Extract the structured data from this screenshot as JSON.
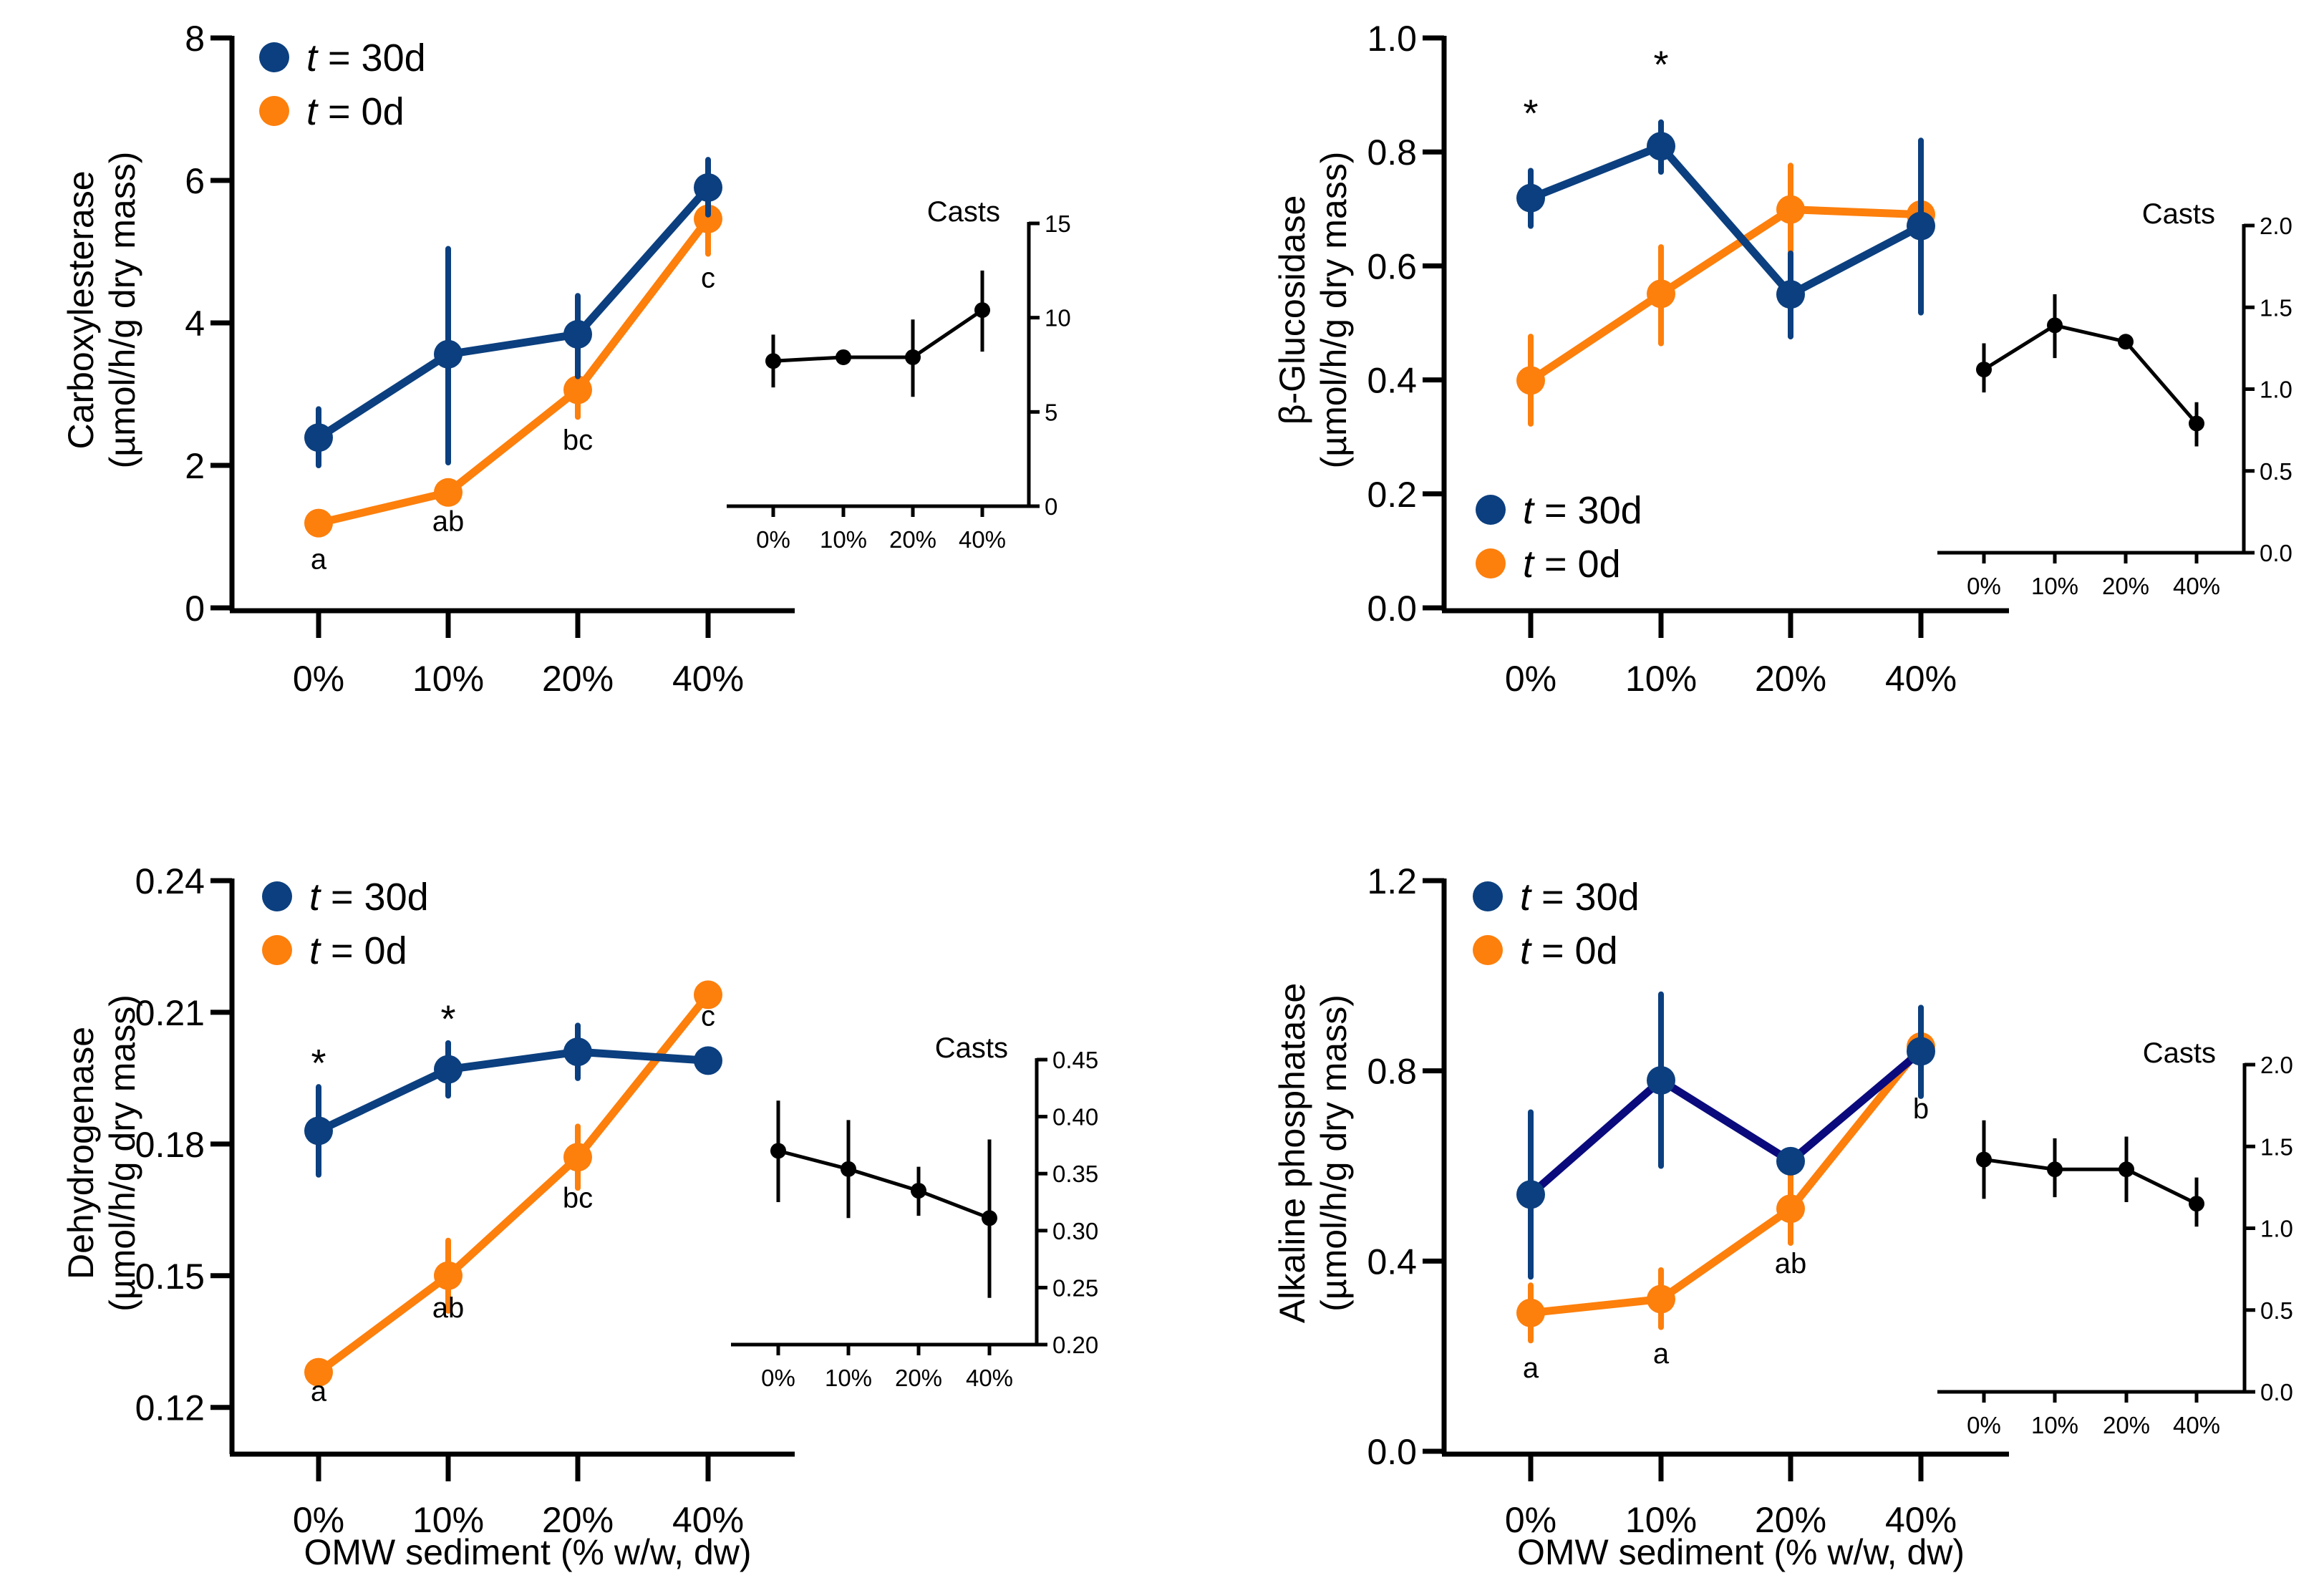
{
  "figure": {
    "x_axis_title": "OMW sediment (% w/w, dw)",
    "legend": [
      {
        "prefix": "t",
        "label": " = 30d",
        "color": "#0b3f7f"
      },
      {
        "prefix": "t",
        "label": " = 0d",
        "color": "#fd7f0c"
      }
    ],
    "inset_title": "Casts",
    "colors": {
      "t30": "#0b3f7f",
      "t0": "#fd7f0c",
      "t30_alt_line": "#0a0a7d",
      "casts": "#000000"
    }
  },
  "chart_data": [
    {
      "type": "line",
      "panel": "top-left",
      "title": "",
      "ylabel_line1": "Carboxylesterase",
      "ylabel_line2": "(µmol/h/g dry mass)",
      "xlabel": "",
      "categories": [
        "0%",
        "10%",
        "20%",
        "40%"
      ],
      "ylim": [
        0,
        8
      ],
      "yticks": [
        0,
        2,
        4,
        6,
        8
      ],
      "ytick_labels": [
        "0",
        "2",
        "4",
        "6",
        "8"
      ],
      "legend_placement": "top-left",
      "series": [
        {
          "name": "t = 30d",
          "values": [
            2.39,
            3.56,
            3.84,
            5.9
          ],
          "err_low": [
            2.0,
            2.04,
            3.25,
            5.52
          ],
          "err_high": [
            2.79,
            5.04,
            4.38,
            6.29
          ]
        },
        {
          "name": "t = 0d",
          "values": [
            1.19,
            1.62,
            3.06,
            5.46
          ],
          "err_low": [
            1.19,
            1.62,
            2.68,
            4.97
          ],
          "err_high": [
            1.19,
            1.62,
            3.3,
            5.9
          ]
        }
      ],
      "letters": [
        {
          "category": "0%",
          "text": "a",
          "y": 0.55
        },
        {
          "category": "10%",
          "text": "ab",
          "y": 1.08
        },
        {
          "category": "20%",
          "text": "bc",
          "y": 2.22
        },
        {
          "category": "40%",
          "text": "c",
          "y": 4.5
        }
      ],
      "stars": [],
      "inset": {
        "title": "Casts",
        "categories": [
          "0%",
          "10%",
          "20%",
          "40%"
        ],
        "ylim": [
          0,
          15
        ],
        "yticks": [
          0,
          5,
          10,
          15
        ],
        "ytick_labels": [
          "0",
          "5",
          "10",
          "15"
        ],
        "values": [
          7.7,
          7.9,
          7.9,
          10.4
        ],
        "err_low": [
          6.3,
          7.9,
          5.8,
          8.2
        ],
        "err_high": [
          9.1,
          7.9,
          9.9,
          12.5
        ]
      }
    },
    {
      "type": "line",
      "panel": "top-right",
      "title": "",
      "ylabel_line1": "β-Glucosidase",
      "ylabel_line2": "(µmol/h/g dry mass)",
      "xlabel": "",
      "categories": [
        "0%",
        "10%",
        "20%",
        "40%"
      ],
      "ylim": [
        0,
        1.0
      ],
      "yticks": [
        0,
        0.2,
        0.4,
        0.6,
        0.8,
        1.0
      ],
      "ytick_labels": [
        "0.0",
        "0.2",
        "0.4",
        "0.6",
        "0.8",
        "1.0"
      ],
      "legend_placement": "bottom-left",
      "series": [
        {
          "name": "t = 30d",
          "values": [
            0.719,
            0.81,
            0.55,
            0.67
          ],
          "err_low": [
            0.67,
            0.765,
            0.476,
            0.518
          ],
          "err_high": [
            0.767,
            0.852,
            0.622,
            0.82
          ]
        },
        {
          "name": "t = 0d",
          "values": [
            0.399,
            0.551,
            0.699,
            0.69
          ],
          "err_low": [
            0.323,
            0.464,
            0.626,
            0.69
          ],
          "err_high": [
            0.476,
            0.633,
            0.776,
            0.69
          ]
        }
      ],
      "letters": [],
      "stars": [
        {
          "category": "0%",
          "text": "*",
          "y": 0.845
        },
        {
          "category": "10%",
          "text": "*",
          "y": 0.93
        }
      ],
      "inset": {
        "title": "Casts",
        "categories": [
          "0%",
          "10%",
          "20%",
          "40%"
        ],
        "ylim": [
          0,
          2.0
        ],
        "yticks": [
          0,
          0.5,
          1.0,
          1.5,
          2.0
        ],
        "ytick_labels": [
          "0.0",
          "0.5",
          "1.0",
          "1.5",
          "2.0"
        ],
        "values": [
          1.12,
          1.39,
          1.29,
          0.79
        ],
        "err_low": [
          0.98,
          1.19,
          1.29,
          0.65
        ],
        "err_high": [
          1.28,
          1.58,
          1.29,
          0.92
        ]
      }
    },
    {
      "type": "line",
      "panel": "bottom-left",
      "title": "",
      "ylabel_line1": "Dehydrogenase",
      "ylabel_line2": "(µmol/h/g dry mass)",
      "xlabel": "OMW sediment (% w/w, dw)",
      "categories": [
        "0%",
        "10%",
        "20%",
        "40%"
      ],
      "ylim": [
        0.11,
        0.24
      ],
      "yticks": [
        0.12,
        0.15,
        0.18,
        0.21,
        0.24
      ],
      "ytick_labels": [
        "0.12",
        "0.15",
        "0.18",
        "0.21",
        "0.24"
      ],
      "legend_placement": "top-left",
      "series": [
        {
          "name": "t = 30d",
          "values": [
            0.183,
            0.197,
            0.201,
            0.199
          ],
          "err_low": [
            0.173,
            0.191,
            0.195,
            0.199
          ],
          "err_high": [
            0.193,
            0.203,
            0.207,
            0.199
          ]
        },
        {
          "name": "t = 0d",
          "values": [
            0.128,
            0.15,
            0.177,
            0.214
          ],
          "err_low": [
            0.128,
            0.142,
            0.17,
            0.214
          ],
          "err_high": [
            0.128,
            0.158,
            0.184,
            0.214
          ]
        }
      ],
      "letters": [
        {
          "category": "0%",
          "text": "a",
          "y": 0.1215
        },
        {
          "category": "10%",
          "text": "ab",
          "y": 0.1405
        },
        {
          "category": "20%",
          "text": "bc",
          "y": 0.1655
        },
        {
          "category": "40%",
          "text": "c",
          "y": 0.207
        }
      ],
      "stars": [
        {
          "category": "0%",
          "text": "*",
          "y": 0.1955
        },
        {
          "category": "10%",
          "text": "*",
          "y": 0.2055
        }
      ],
      "inset": {
        "title": "Casts",
        "categories": [
          "0%",
          "10%",
          "20%",
          "40%"
        ],
        "ylim": [
          0.2,
          0.45
        ],
        "yticks": [
          0.2,
          0.25,
          0.3,
          0.35,
          0.4,
          0.45
        ],
        "ytick_labels": [
          "0.20",
          "0.25",
          "0.30",
          "0.35",
          "0.40",
          "0.45"
        ],
        "values": [
          0.37,
          0.354,
          0.335,
          0.311
        ],
        "err_low": [
          0.325,
          0.311,
          0.313,
          0.241
        ],
        "err_high": [
          0.414,
          0.397,
          0.356,
          0.38
        ]
      }
    },
    {
      "type": "line",
      "panel": "bottom-right",
      "title": "",
      "ylabel_line1": "Alkaline phosphatase",
      "ylabel_line2": "(µmol/h/g dry mass)",
      "xlabel": "OMW sediment (% w/w, dw)",
      "categories": [
        "0%",
        "10%",
        "20%",
        "40%"
      ],
      "ylim": [
        0,
        1.2
      ],
      "yticks": [
        0,
        0.4,
        0.8,
        1.2
      ],
      "ytick_labels": [
        "0.0",
        "0.4",
        "0.8",
        "1.2"
      ],
      "legend_placement": "top-left",
      "series": [
        {
          "name": "t = 30d",
          "values": [
            0.54,
            0.78,
            0.61,
            0.841
          ],
          "err_low": [
            0.367,
            0.6,
            0.61,
            0.747
          ],
          "err_high": [
            0.713,
            0.961,
            0.61,
            0.933
          ]
        },
        {
          "name": "t = 0d",
          "values": [
            0.291,
            0.32,
            0.51,
            0.851
          ],
          "err_low": [
            0.233,
            0.261,
            0.438,
            0.851
          ],
          "err_high": [
            0.349,
            0.381,
            0.584,
            0.851
          ]
        }
      ],
      "letters": [
        {
          "category": "0%",
          "text": "a",
          "y": 0.155
        },
        {
          "category": "10%",
          "text": "a",
          "y": 0.185
        },
        {
          "category": "20%",
          "text": "ab",
          "y": 0.375
        },
        {
          "category": "40%",
          "text": "b",
          "y": 0.7
        }
      ],
      "stars": [],
      "inset": {
        "title": "Casts",
        "categories": [
          "0%",
          "10%",
          "20%",
          "40%"
        ],
        "ylim": [
          0,
          2.0
        ],
        "yticks": [
          0,
          0.5,
          1.0,
          1.5,
          2.0
        ],
        "ytick_labels": [
          "0.0",
          "0.5",
          "1.0",
          "1.5",
          "2.0"
        ],
        "values": [
          1.42,
          1.36,
          1.36,
          1.15
        ],
        "err_low": [
          1.18,
          1.19,
          1.16,
          1.01
        ],
        "err_high": [
          1.66,
          1.55,
          1.56,
          1.31
        ]
      }
    }
  ]
}
